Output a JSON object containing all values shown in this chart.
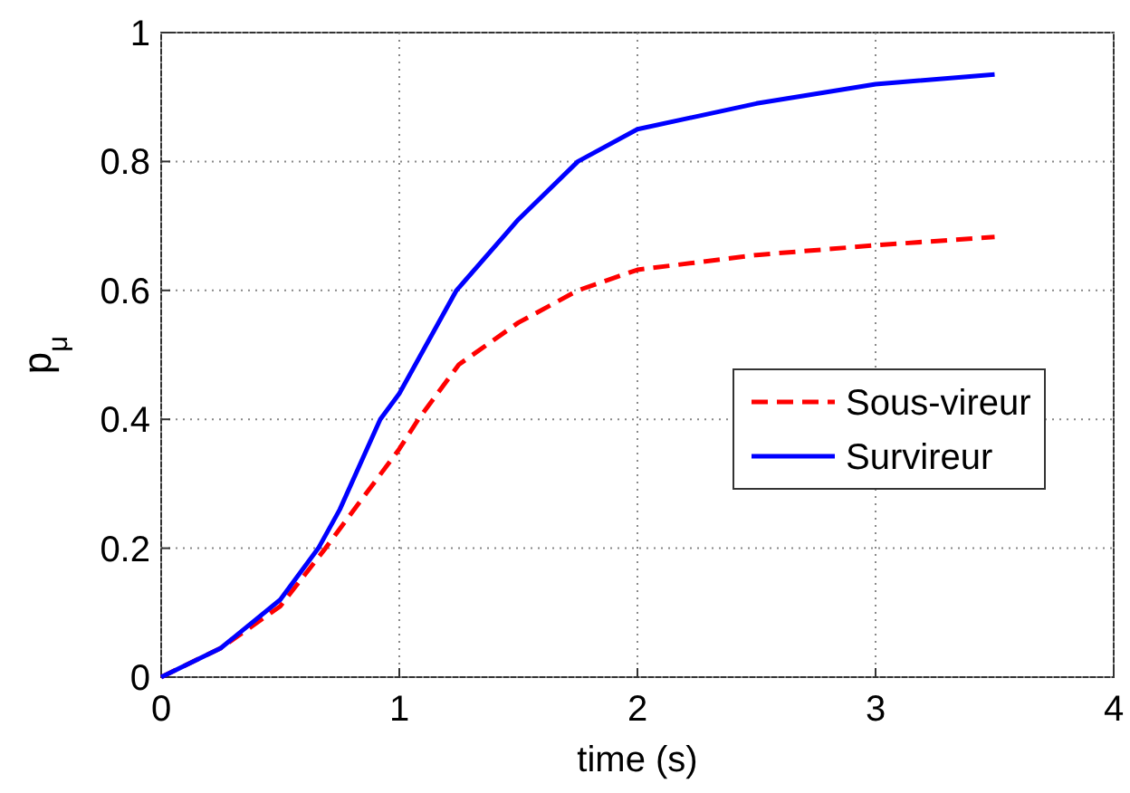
{
  "chart_data": {
    "type": "line",
    "xlabel": "time (s)",
    "ylabel": "p$_{μ}$",
    "xlim": [
      0,
      4
    ],
    "ylim": [
      0,
      1
    ],
    "xticks": [
      0,
      1,
      2,
      3,
      4
    ],
    "yticks": [
      0,
      0.2,
      0.4,
      0.6,
      0.8,
      1
    ],
    "grid": true,
    "legend": "right",
    "x": [
      0,
      0.25,
      0.5,
      0.69,
      0.75,
      1,
      1.08,
      1.25,
      1.5,
      1.75,
      2,
      2.5,
      3,
      3.5
    ],
    "series": [
      {
        "name": "Sous-vireur",
        "color": "#ff0000",
        "line_style": "dashed",
        "values": [
          0,
          0.045,
          0.11,
          0.2,
          0.23,
          0.354,
          0.4,
          0.485,
          0.55,
          0.6,
          0.632,
          0.655,
          0.67,
          0.683
        ]
      },
      {
        "name": "Survireur",
        "color": "#0000ff",
        "line_style": "solid",
        "x": [
          0,
          0.25,
          0.5,
          0.66,
          0.75,
          0.92,
          1,
          1.24,
          1.5,
          1.75,
          2,
          2.5,
          3,
          3.5
        ],
        "values": [
          0,
          0.045,
          0.12,
          0.2,
          0.26,
          0.4,
          0.44,
          0.6,
          0.71,
          0.8,
          0.85,
          0.89,
          0.92,
          0.935
        ]
      }
    ]
  }
}
